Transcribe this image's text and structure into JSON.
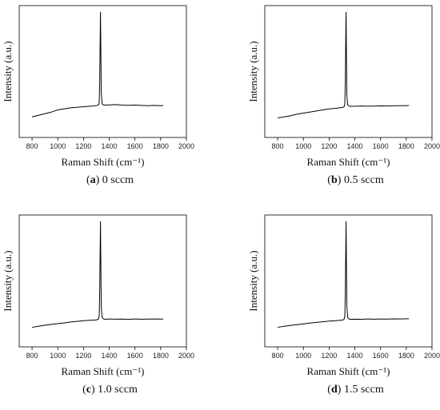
{
  "chart_data": [
    {
      "type": "line",
      "panel_letter": "a",
      "caption": "0 sccm",
      "xlabel": "Raman Shift (cm⁻¹)",
      "ylabel": "Intensity (a.u.)",
      "xlim": [
        700,
        2000
      ],
      "xticks": [
        800,
        1000,
        1200,
        1400,
        1600,
        1800,
        2000
      ],
      "grid": false,
      "series": [
        {
          "x": [
            800,
            850,
            900,
            950,
            1000,
            1050,
            1100,
            1150,
            1200,
            1250,
            1280,
            1300,
            1315,
            1322,
            1326,
            1330,
            1332,
            1334,
            1338,
            1345,
            1360,
            1400,
            1450,
            1500,
            1550,
            1600,
            1650,
            1700,
            1750,
            1800,
            1820
          ],
          "y": [
            0.02,
            0.035,
            0.05,
            0.065,
            0.085,
            0.095,
            0.105,
            0.11,
            0.115,
            0.12,
            0.123,
            0.126,
            0.13,
            0.15,
            0.35,
            0.8,
            1.0,
            0.75,
            0.25,
            0.14,
            0.13,
            0.132,
            0.135,
            0.13,
            0.128,
            0.13,
            0.127,
            0.125,
            0.127,
            0.125,
            0.126
          ]
        }
      ]
    },
    {
      "type": "line",
      "panel_letter": "b",
      "caption": "0.5 sccm",
      "xlabel": "Raman Shift (cm⁻¹)",
      "ylabel": "Intensity (a.u.)",
      "xlim": [
        700,
        2000
      ],
      "xticks": [
        800,
        1000,
        1200,
        1400,
        1600,
        1800,
        2000
      ],
      "grid": false,
      "series": [
        {
          "x": [
            800,
            850,
            900,
            950,
            1000,
            1050,
            1100,
            1150,
            1200,
            1250,
            1280,
            1300,
            1315,
            1322,
            1326,
            1330,
            1332,
            1334,
            1338,
            1345,
            1360,
            1400,
            1450,
            1500,
            1550,
            1600,
            1650,
            1700,
            1750,
            1800,
            1820
          ],
          "y": [
            0.01,
            0.02,
            0.03,
            0.045,
            0.055,
            0.065,
            0.075,
            0.085,
            0.095,
            0.1,
            0.105,
            0.108,
            0.112,
            0.14,
            0.35,
            0.8,
            1.0,
            0.7,
            0.22,
            0.13,
            0.118,
            0.12,
            0.122,
            0.12,
            0.121,
            0.123,
            0.122,
            0.124,
            0.125,
            0.125,
            0.126
          ]
        }
      ]
    },
    {
      "type": "line",
      "panel_letter": "c",
      "caption": "1.0 sccm",
      "xlabel": "Raman Shift (cm⁻¹)",
      "ylabel": "Intensity (a.u.)",
      "xlim": [
        700,
        2000
      ],
      "xticks": [
        800,
        1000,
        1200,
        1400,
        1600,
        1800,
        2000
      ],
      "grid": false,
      "series": [
        {
          "x": [
            800,
            850,
            900,
            950,
            1000,
            1050,
            1100,
            1150,
            1200,
            1250,
            1280,
            1300,
            1315,
            1322,
            1326,
            1330,
            1332,
            1334,
            1338,
            1345,
            1360,
            1400,
            1450,
            1500,
            1550,
            1600,
            1650,
            1700,
            1750,
            1800,
            1820
          ],
          "y": [
            0.01,
            0.02,
            0.03,
            0.038,
            0.045,
            0.052,
            0.06,
            0.066,
            0.072,
            0.076,
            0.078,
            0.08,
            0.085,
            0.12,
            0.35,
            0.8,
            1.0,
            0.7,
            0.2,
            0.1,
            0.085,
            0.088,
            0.086,
            0.087,
            0.085,
            0.088,
            0.086,
            0.087,
            0.088,
            0.087,
            0.088
          ]
        }
      ]
    },
    {
      "type": "line",
      "panel_letter": "d",
      "caption": "1.5 sccm",
      "xlabel": "Raman Shift (cm⁻¹)",
      "ylabel": "Intensity (a.u.)",
      "xlim": [
        700,
        2000
      ],
      "xticks": [
        800,
        1000,
        1200,
        1400,
        1600,
        1800,
        2000
      ],
      "grid": false,
      "series": [
        {
          "x": [
            800,
            850,
            900,
            950,
            1000,
            1050,
            1100,
            1150,
            1200,
            1250,
            1280,
            1300,
            1315,
            1322,
            1326,
            1330,
            1332,
            1334,
            1338,
            1345,
            1360,
            1400,
            1450,
            1500,
            1550,
            1600,
            1650,
            1700,
            1750,
            1800,
            1820
          ],
          "y": [
            0.01,
            0.02,
            0.028,
            0.035,
            0.042,
            0.05,
            0.056,
            0.062,
            0.068,
            0.072,
            0.075,
            0.078,
            0.082,
            0.11,
            0.33,
            0.78,
            1.0,
            0.7,
            0.2,
            0.1,
            0.085,
            0.086,
            0.085,
            0.088,
            0.086,
            0.088,
            0.087,
            0.089,
            0.088,
            0.09,
            0.09
          ]
        }
      ]
    }
  ]
}
